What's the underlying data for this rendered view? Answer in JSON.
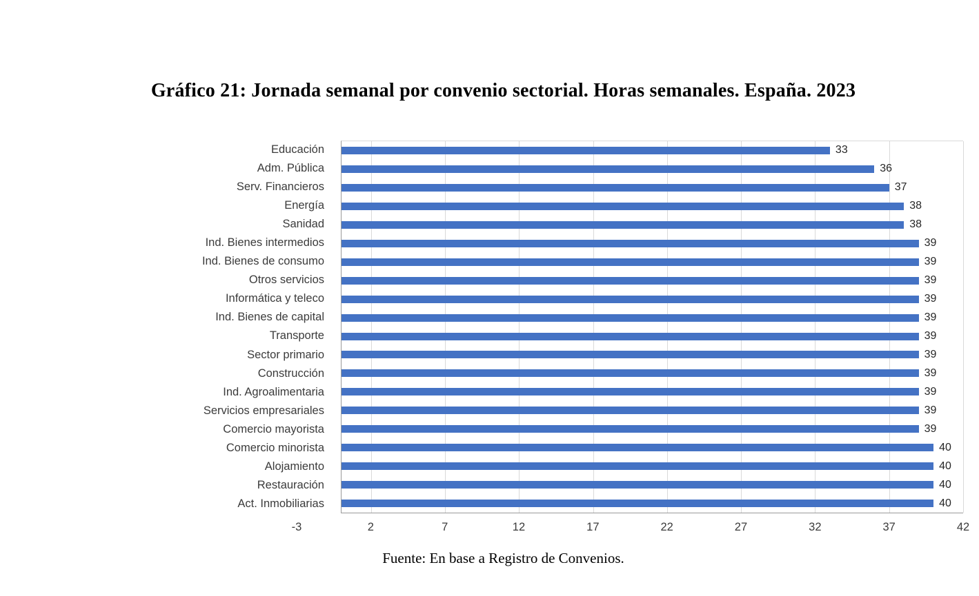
{
  "page": {
    "title": "Gráfico 21: Jornada semanal por convenio sectorial. Horas semanales. España. 2023",
    "source": "Fuente: En base a Registro de Convenios."
  },
  "chart_data": {
    "type": "bar",
    "orientation": "horizontal",
    "title": "Gráfico 21: Jornada semanal por convenio sectorial. Horas semanales. España. 2023",
    "xlabel": "",
    "ylabel": "",
    "categories": [
      "Educación",
      "Adm. Pública",
      "Serv. Financieros",
      "Energía",
      "Sanidad",
      "Ind. Bienes intermedios",
      "Ind. Bienes de consumo",
      "Otros servicios",
      "Informática y teleco",
      "Ind. Bienes de capital",
      "Transporte",
      "Sector primario",
      "Construcción",
      "Ind. Agroalimentaria",
      "Servicios empresariales",
      "Comercio mayorista",
      "Comercio minorista",
      "Alojamiento",
      "Restauración",
      "Act. Inmobiliarias"
    ],
    "values": [
      33,
      36,
      37,
      38,
      38,
      39,
      39,
      39,
      39,
      39,
      39,
      39,
      39,
      39,
      39,
      39,
      40,
      40,
      40,
      40
    ],
    "xlim": [
      -3,
      42
    ],
    "bar_start": 0,
    "xticks": [
      -3,
      2,
      7,
      12,
      17,
      22,
      27,
      32,
      37,
      42
    ],
    "bar_color": "#4472C4",
    "grid": true,
    "data_labels": true,
    "legend": "none",
    "source": "Fuente: En base a Registro de Convenios."
  }
}
